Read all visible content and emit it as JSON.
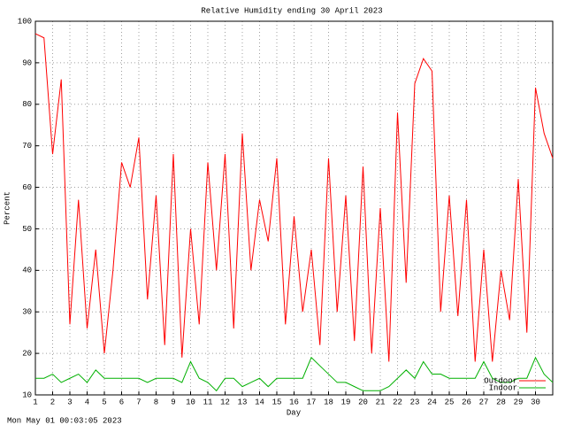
{
  "chart_data": {
    "type": "line",
    "title": "Relative Humidity ending 30 April 2023",
    "ylabel": "Percent",
    "xlabel": "Day",
    "footer": "Mon May 01 00:03:05 2023",
    "grid": true,
    "legend": "lower right",
    "xlim": [
      1,
      31
    ],
    "ylim": [
      10,
      100
    ],
    "xticks": [
      1,
      2,
      3,
      4,
      5,
      6,
      7,
      8,
      9,
      10,
      11,
      12,
      13,
      14,
      15,
      16,
      17,
      18,
      19,
      20,
      21,
      22,
      23,
      24,
      25,
      26,
      27,
      28,
      29,
      30
    ],
    "yticks": [
      10,
      20,
      30,
      40,
      50,
      60,
      70,
      80,
      90,
      100
    ],
    "x": [
      1,
      1.5,
      2,
      2.5,
      3,
      3.5,
      4,
      4.5,
      5,
      5.5,
      6,
      6.5,
      7,
      7.5,
      8,
      8.5,
      9,
      9.5,
      10,
      10.5,
      11,
      11.5,
      12,
      12.5,
      13,
      13.5,
      14,
      14.5,
      15,
      15.5,
      16,
      16.5,
      17,
      17.5,
      18,
      18.5,
      19,
      19.5,
      20,
      20.5,
      21,
      21.5,
      22,
      22.5,
      23,
      23.5,
      24,
      24.5,
      25,
      25.5,
      26,
      26.5,
      27,
      27.5,
      28,
      28.5,
      29,
      29.5,
      30,
      30.5,
      31
    ],
    "series": [
      {
        "name": "Outdoor",
        "color": "#ff0000",
        "values": [
          97,
          96,
          68,
          86,
          27,
          57,
          26,
          45,
          20,
          40,
          66,
          60,
          72,
          33,
          58,
          22,
          68,
          19,
          50,
          27,
          66,
          40,
          68,
          26,
          73,
          40,
          57,
          47,
          67,
          27,
          53,
          30,
          45,
          22,
          67,
          30,
          58,
          23,
          65,
          20,
          55,
          18,
          78,
          37,
          85,
          91,
          88,
          30,
          58,
          29,
          57,
          18,
          45,
          18,
          40,
          28,
          62,
          25,
          84,
          73,
          67
        ]
      },
      {
        "name": "Indoor",
        "color": "#00b000",
        "values": [
          14,
          14,
          15,
          13,
          14,
          15,
          13,
          16,
          14,
          14,
          14,
          14,
          14,
          13,
          14,
          14,
          14,
          13,
          18,
          14,
          13,
          11,
          14,
          14,
          12,
          13,
          14,
          12,
          14,
          14,
          14,
          14,
          19,
          17,
          15,
          13,
          13,
          12,
          11,
          11,
          11,
          12,
          14,
          16,
          14,
          18,
          15,
          15,
          14,
          14,
          14,
          14,
          18,
          14,
          13,
          13,
          14,
          14,
          19,
          15,
          13
        ]
      }
    ]
  }
}
